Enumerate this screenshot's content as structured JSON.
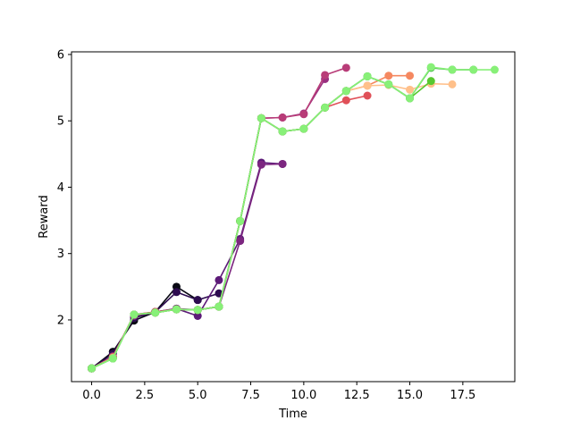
{
  "chart_data": {
    "type": "line",
    "xlabel": "Time",
    "ylabel": "Reward",
    "xlim": [
      -0.95,
      19.95
    ],
    "ylim": [
      1.07,
      6.04
    ],
    "xticks": [
      0.0,
      2.5,
      5.0,
      7.5,
      10.0,
      12.5,
      15.0,
      17.5
    ],
    "xtick_labels": [
      "0.0",
      "2.5",
      "5.0",
      "7.5",
      "10.0",
      "12.5",
      "15.0",
      "17.5"
    ],
    "yticks": [
      2,
      3,
      4,
      5,
      6
    ],
    "ytick_labels": [
      "2",
      "3",
      "4",
      "5",
      "6"
    ],
    "grid": false,
    "series": [
      {
        "color": "#0a0a14",
        "x": [
          0,
          1,
          2,
          3,
          4,
          5
        ],
        "y": [
          1.27,
          1.52,
          1.99,
          2.12,
          2.5,
          2.3
        ]
      },
      {
        "color": "#2d0c50",
        "x": [
          0,
          1,
          2,
          3,
          4,
          5,
          6
        ],
        "y": [
          1.27,
          1.49,
          2.03,
          2.12,
          2.42,
          2.3,
          2.4
        ]
      },
      {
        "color": "#5c1a78",
        "x": [
          0,
          1,
          2,
          3,
          4,
          5,
          6,
          7,
          8,
          9
        ],
        "y": [
          1.27,
          1.45,
          2.06,
          2.12,
          2.17,
          2.06,
          2.6,
          3.22,
          4.37,
          4.35
        ]
      },
      {
        "color": "#7c2680",
        "x": [
          0,
          1,
          2,
          3,
          4,
          5,
          6,
          7,
          8,
          9
        ],
        "y": [
          1.27,
          1.45,
          2.06,
          2.12,
          2.17,
          2.15,
          2.2,
          3.19,
          4.34,
          4.35
        ]
      },
      {
        "color": "#9a3080",
        "x": [
          0,
          1,
          2,
          3,
          4,
          5,
          6,
          7,
          8,
          9,
          10,
          11
        ],
        "y": [
          1.27,
          1.45,
          2.07,
          2.12,
          2.16,
          2.15,
          2.2,
          3.49,
          5.04,
          5.05,
          5.11,
          5.63
        ]
      },
      {
        "color": "#b83c78",
        "x": [
          0,
          1,
          2,
          3,
          4,
          5,
          6,
          7,
          8,
          9,
          10,
          11,
          12
        ],
        "y": [
          1.27,
          1.44,
          2.08,
          2.12,
          2.16,
          2.15,
          2.2,
          3.49,
          5.04,
          5.05,
          5.1,
          5.69,
          5.8
        ]
      },
      {
        "color": "#e05058",
        "x": [
          0,
          1,
          2,
          3,
          4,
          5,
          6,
          7,
          8,
          9,
          10,
          11,
          12,
          13
        ],
        "y": [
          1.27,
          1.44,
          2.08,
          2.12,
          2.16,
          2.15,
          2.2,
          3.49,
          5.04,
          4.84,
          4.88,
          5.2,
          5.31,
          5.38
        ]
      },
      {
        "color": "#f58860",
        "x": [
          0,
          1,
          2,
          3,
          4,
          5,
          6,
          7,
          8,
          9,
          10,
          11,
          12,
          13,
          14,
          15
        ],
        "y": [
          1.27,
          1.43,
          2.08,
          2.11,
          2.16,
          2.15,
          2.2,
          3.49,
          5.04,
          4.84,
          4.88,
          5.2,
          5.45,
          5.53,
          5.68,
          5.68
        ]
      },
      {
        "color": "#ffc08a",
        "x": [
          0,
          1,
          2,
          3,
          4,
          5,
          6,
          7,
          8,
          9,
          10,
          11,
          12,
          13,
          14,
          15,
          16,
          17
        ],
        "y": [
          1.27,
          1.43,
          2.08,
          2.11,
          2.16,
          2.15,
          2.2,
          3.49,
          5.04,
          4.84,
          4.88,
          5.2,
          5.45,
          5.53,
          5.54,
          5.47,
          5.56,
          5.55
        ]
      },
      {
        "color": "#58c830",
        "x": [
          0,
          1,
          2,
          3,
          4,
          5,
          6,
          7,
          8,
          9,
          10,
          11,
          12,
          13,
          14,
          15,
          16
        ],
        "y": [
          1.27,
          1.42,
          2.08,
          2.11,
          2.16,
          2.15,
          2.2,
          3.49,
          5.04,
          4.84,
          4.88,
          5.2,
          5.45,
          5.67,
          5.55,
          5.34,
          5.6
        ]
      },
      {
        "color": "#28a830",
        "x": [
          0,
          1,
          2,
          3,
          4,
          5,
          6,
          7,
          8,
          9,
          10,
          11,
          12,
          13,
          14,
          15,
          16,
          17,
          18
        ],
        "y": [
          1.27,
          1.42,
          2.08,
          2.11,
          2.16,
          2.15,
          2.2,
          3.49,
          5.04,
          4.84,
          4.88,
          5.2,
          5.45,
          5.67,
          5.55,
          5.34,
          5.8,
          5.77,
          5.77
        ]
      },
      {
        "color": "#88f078",
        "x": [
          0,
          1,
          2,
          3,
          4,
          5,
          6,
          7,
          8,
          9,
          10,
          11,
          12,
          13,
          14,
          15,
          16,
          17,
          18,
          19
        ],
        "y": [
          1.27,
          1.42,
          2.08,
          2.11,
          2.16,
          2.15,
          2.2,
          3.49,
          5.04,
          4.84,
          4.88,
          5.2,
          5.45,
          5.67,
          5.55,
          5.34,
          5.81,
          5.77,
          5.77,
          5.77
        ]
      }
    ]
  }
}
